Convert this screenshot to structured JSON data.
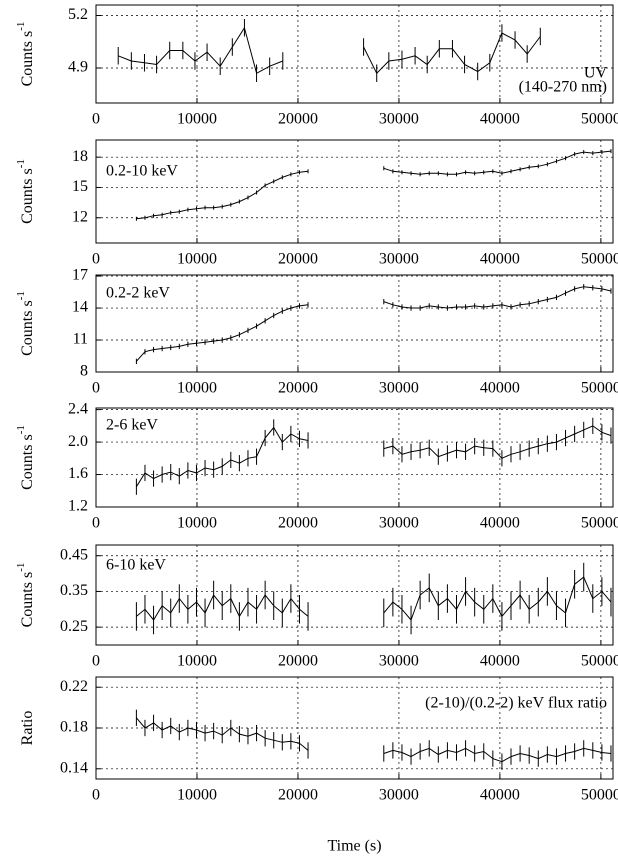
{
  "chart_data": [
    {
      "type": "line",
      "ylabel": "Counts s",
      "ylabel_sup": "-1",
      "annotation": [
        "UV",
        "(140-270 nm)"
      ],
      "x": [
        2200,
        3500,
        4800,
        6000,
        7300,
        8600,
        9800,
        11000,
        12300,
        13500,
        14700,
        15900,
        17200,
        18500,
        22500,
        26500,
        27800,
        29000,
        30300,
        31600,
        32800,
        34000,
        35300,
        36500,
        37800,
        39000,
        40200,
        41500,
        42700,
        44000
      ],
      "values": [
        4.97,
        4.94,
        4.93,
        4.92,
        5.0,
        5.0,
        4.94,
        4.99,
        4.91,
        5.02,
        5.13,
        4.87,
        4.91,
        4.94,
        null,
        5.02,
        4.87,
        4.94,
        4.95,
        4.97,
        4.92,
        5.01,
        5.01,
        4.92,
        4.88,
        4.93,
        5.1,
        5.06,
        4.98,
        5.08
      ],
      "error": 0.05,
      "xlim": [
        0,
        51200
      ],
      "ylim": [
        4.7,
        5.26
      ],
      "xticks": [
        0,
        10000,
        20000,
        30000,
        40000,
        50000
      ],
      "yticks": [
        4.9,
        5.2
      ],
      "grid": true
    },
    {
      "type": "line",
      "ylabel": "Counts s",
      "ylabel_sup": "-1",
      "annotation": [
        "0.2-10 keV"
      ],
      "x": [
        4000,
        4850,
        5700,
        6550,
        7400,
        8250,
        9100,
        9950,
        10800,
        11650,
        12500,
        13350,
        14200,
        15050,
        15900,
        16750,
        17600,
        18450,
        19300,
        20150,
        21000,
        25000,
        28500,
        29400,
        30300,
        31200,
        32100,
        33000,
        33900,
        34800,
        35700,
        36600,
        37500,
        38400,
        39300,
        40200,
        41100,
        42000,
        42900,
        43800,
        44700,
        45600,
        46500,
        47400,
        48300,
        49200,
        50100,
        51000
      ],
      "values": [
        11.9,
        12.0,
        12.2,
        12.3,
        12.5,
        12.6,
        12.8,
        12.9,
        13.0,
        13.0,
        13.1,
        13.3,
        13.6,
        14.0,
        14.5,
        15.2,
        15.6,
        16.0,
        16.3,
        16.5,
        16.6,
        null,
        16.9,
        16.6,
        16.5,
        16.4,
        16.3,
        16.4,
        16.4,
        16.3,
        16.3,
        16.5,
        16.4,
        16.5,
        16.6,
        16.4,
        16.6,
        16.8,
        17.0,
        17.1,
        17.3,
        17.6,
        17.9,
        18.3,
        18.5,
        18.4,
        18.5,
        18.6
      ],
      "error": 0.2,
      "xlim": [
        0,
        51200
      ],
      "ylim": [
        9.5,
        19.7
      ],
      "xticks": [
        0,
        10000,
        20000,
        30000,
        40000,
        50000
      ],
      "yticks": [
        12,
        15,
        18
      ],
      "grid": true
    },
    {
      "type": "line",
      "ylabel": "Counts s",
      "ylabel_sup": "-1",
      "annotation": [
        "0.2-2 keV"
      ],
      "x": [
        4000,
        4850,
        5700,
        6550,
        7400,
        8250,
        9100,
        9950,
        10800,
        11650,
        12500,
        13350,
        14200,
        15050,
        15900,
        16750,
        17600,
        18450,
        19300,
        20150,
        21000,
        25000,
        28500,
        29400,
        30300,
        31200,
        32100,
        33000,
        33900,
        34800,
        35700,
        36600,
        37500,
        38400,
        39300,
        40200,
        41100,
        42000,
        42900,
        43800,
        44700,
        45600,
        46500,
        47400,
        48300,
        49200,
        50100,
        51000
      ],
      "values": [
        9.0,
        9.9,
        10.1,
        10.2,
        10.3,
        10.4,
        10.6,
        10.7,
        10.8,
        10.9,
        11.0,
        11.2,
        11.5,
        11.9,
        12.3,
        12.8,
        13.3,
        13.7,
        14.0,
        14.2,
        14.3,
        null,
        14.6,
        14.3,
        14.1,
        14.0,
        14.0,
        14.2,
        14.1,
        14.0,
        14.1,
        14.1,
        14.2,
        14.1,
        14.2,
        14.3,
        14.1,
        14.3,
        14.4,
        14.6,
        14.8,
        15.0,
        15.4,
        15.8,
        16.0,
        15.9,
        15.8,
        15.6
      ],
      "error": 0.25,
      "xlim": [
        0,
        51200
      ],
      "ylim": [
        8,
        17.1
      ],
      "xticks": [
        0,
        10000,
        20000,
        30000,
        40000,
        50000
      ],
      "yticks": [
        8,
        11,
        14,
        17
      ],
      "grid": true
    },
    {
      "type": "line",
      "ylabel": "Counts s",
      "ylabel_sup": "-1",
      "annotation": [
        "2-6 keV"
      ],
      "x": [
        4000,
        4850,
        5700,
        6550,
        7400,
        8250,
        9100,
        9950,
        10800,
        11650,
        12500,
        13350,
        14200,
        15050,
        15900,
        16750,
        17600,
        18450,
        19300,
        20150,
        21000,
        25000,
        28500,
        29400,
        30300,
        31200,
        32100,
        33000,
        33900,
        34800,
        35700,
        36600,
        37500,
        38400,
        39300,
        40200,
        41100,
        42000,
        42900,
        43800,
        44700,
        45600,
        46500,
        47400,
        48300,
        49200,
        50100,
        51000
      ],
      "values": [
        1.45,
        1.62,
        1.55,
        1.6,
        1.63,
        1.58,
        1.65,
        1.62,
        1.68,
        1.66,
        1.7,
        1.78,
        1.74,
        1.8,
        1.82,
        2.05,
        2.18,
        2.0,
        2.1,
        2.04,
        2.02,
        null,
        1.92,
        1.95,
        1.85,
        1.88,
        1.9,
        1.93,
        1.82,
        1.86,
        1.9,
        1.88,
        1.95,
        1.93,
        1.92,
        1.8,
        1.85,
        1.88,
        1.92,
        1.95,
        1.98,
        2.0,
        2.05,
        2.1,
        2.15,
        2.2,
        2.12,
        2.08
      ],
      "error": 0.1,
      "xlim": [
        0,
        51200
      ],
      "ylim": [
        1.2,
        2.42
      ],
      "xticks": [
        0,
        10000,
        20000,
        30000,
        40000,
        50000
      ],
      "yticks": [
        1.2,
        1.6,
        {
          "value": 2,
          "label": "2.0"
        },
        2.4
      ],
      "grid": true
    },
    {
      "type": "line",
      "ylabel": "Counts s",
      "ylabel_sup": "-1",
      "annotation": [
        "6-10 keV"
      ],
      "x": [
        4000,
        4850,
        5700,
        6550,
        7400,
        8250,
        9100,
        9950,
        10800,
        11650,
        12500,
        13350,
        14200,
        15050,
        15900,
        16750,
        17600,
        18450,
        19300,
        20150,
        21000,
        25000,
        28500,
        29400,
        30300,
        31200,
        32100,
        33000,
        33900,
        34800,
        35700,
        36600,
        37500,
        38400,
        39300,
        40200,
        41100,
        42000,
        42900,
        43800,
        44700,
        45600,
        46500,
        47400,
        48300,
        49200,
        50100,
        51000
      ],
      "values": [
        0.28,
        0.3,
        0.27,
        0.31,
        0.29,
        0.33,
        0.3,
        0.32,
        0.29,
        0.34,
        0.31,
        0.33,
        0.28,
        0.32,
        0.3,
        0.34,
        0.31,
        0.29,
        0.33,
        0.3,
        0.28,
        null,
        0.29,
        0.32,
        0.3,
        0.27,
        0.34,
        0.36,
        0.31,
        0.33,
        0.3,
        0.35,
        0.32,
        0.3,
        0.33,
        0.28,
        0.31,
        0.34,
        0.3,
        0.32,
        0.35,
        0.31,
        0.29,
        0.37,
        0.39,
        0.33,
        0.35,
        0.32
      ],
      "error": 0.04,
      "xlim": [
        0,
        51200
      ],
      "ylim": [
        0.2,
        0.48
      ],
      "xticks": [
        0,
        10000,
        20000,
        30000,
        40000,
        50000
      ],
      "yticks": [
        0.25,
        0.35,
        0.45
      ],
      "grid": true
    },
    {
      "type": "line",
      "ylabel": "Ratio",
      "annotation": [
        "(2-10)/(0.2-2) keV flux ratio"
      ],
      "xlabel": "Time (s)",
      "x": [
        4000,
        4850,
        5700,
        6550,
        7400,
        8250,
        9100,
        9950,
        10800,
        11650,
        12500,
        13350,
        14200,
        15050,
        15900,
        16750,
        17600,
        18450,
        19300,
        20150,
        21000,
        25000,
        28500,
        29400,
        30300,
        31200,
        32100,
        33000,
        33900,
        34800,
        35700,
        36600,
        37500,
        38400,
        39300,
        40200,
        41100,
        42000,
        42900,
        43800,
        44700,
        45600,
        46500,
        47400,
        48300,
        49200,
        50100,
        51000
      ],
      "values": [
        0.19,
        0.18,
        0.185,
        0.178,
        0.182,
        0.176,
        0.18,
        0.178,
        0.175,
        0.177,
        0.173,
        0.18,
        0.174,
        0.172,
        0.175,
        0.17,
        0.168,
        0.166,
        0.167,
        0.165,
        0.158,
        null,
        0.155,
        0.158,
        0.156,
        0.152,
        0.157,
        0.16,
        0.154,
        0.158,
        0.156,
        0.16,
        0.155,
        0.157,
        0.15,
        0.147,
        0.152,
        0.155,
        0.153,
        0.15,
        0.154,
        0.152,
        0.155,
        0.157,
        0.16,
        0.158,
        0.156,
        0.155
      ],
      "error": 0.008,
      "xlim": [
        0,
        51200
      ],
      "ylim": [
        0.13,
        0.23
      ],
      "xticks": [
        0,
        10000,
        20000,
        30000,
        40000,
        50000
      ],
      "yticks": [
        0.14,
        0.18,
        0.22
      ],
      "grid": true
    }
  ]
}
